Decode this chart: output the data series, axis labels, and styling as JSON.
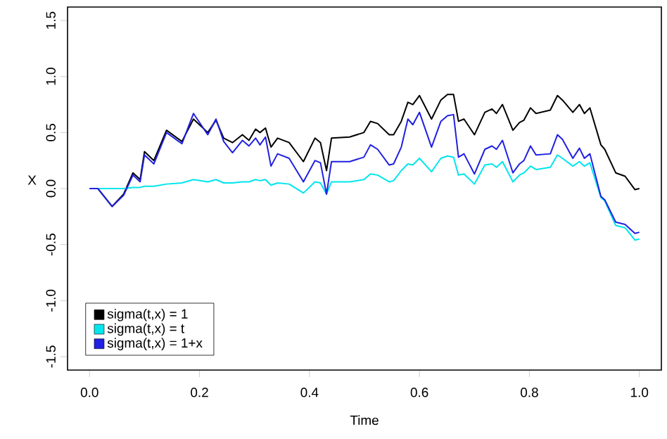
{
  "chart_data": {
    "type": "line",
    "xlabel": "Time",
    "ylabel": "X",
    "x": [
      0,
      0.015,
      0.041,
      0.062,
      0.079,
      0.092,
      0.1,
      0.117,
      0.14,
      0.168,
      0.189,
      0.215,
      0.23,
      0.244,
      0.26,
      0.278,
      0.29,
      0.302,
      0.31,
      0.32,
      0.33,
      0.342,
      0.363,
      0.389,
      0.41,
      0.42,
      0.431,
      0.44,
      0.473,
      0.499,
      0.511,
      0.524,
      0.545,
      0.553,
      0.567,
      0.579,
      0.588,
      0.6,
      0.622,
      0.639,
      0.651,
      0.662,
      0.671,
      0.681,
      0.7,
      0.719,
      0.732,
      0.74,
      0.751,
      0.77,
      0.782,
      0.79,
      0.802,
      0.812,
      0.838,
      0.851,
      0.86,
      0.879,
      0.891,
      0.9,
      0.91,
      0.93,
      0.937,
      0.957,
      0.974,
      0.992,
      1.0
    ],
    "series": [
      {
        "name": "sigma(t,x) = 1",
        "color": "#000000",
        "values": [
          0,
          0,
          -0.16,
          -0.05,
          0.14,
          0.08,
          0.33,
          0.25,
          0.52,
          0.42,
          0.62,
          0.5,
          0.61,
          0.45,
          0.41,
          0.48,
          0.43,
          0.53,
          0.5,
          0.54,
          0.37,
          0.45,
          0.41,
          0.24,
          0.45,
          0.41,
          0.16,
          0.45,
          0.46,
          0.5,
          0.6,
          0.58,
          0.48,
          0.48,
          0.6,
          0.77,
          0.75,
          0.83,
          0.62,
          0.79,
          0.84,
          0.84,
          0.6,
          0.62,
          0.48,
          0.68,
          0.71,
          0.67,
          0.75,
          0.52,
          0.59,
          0.61,
          0.72,
          0.67,
          0.7,
          0.83,
          0.79,
          0.68,
          0.75,
          0.67,
          0.72,
          0.39,
          0.35,
          0.14,
          0.11,
          -0.01,
          0.0
        ]
      },
      {
        "name": "sigma(t,x) = t",
        "color": "#00e5ee",
        "values": [
          0,
          0,
          0,
          0,
          0.01,
          0.01,
          0.02,
          0.02,
          0.04,
          0.05,
          0.08,
          0.06,
          0.08,
          0.05,
          0.05,
          0.06,
          0.06,
          0.08,
          0.07,
          0.08,
          0.03,
          0.05,
          0.04,
          -0.04,
          0.06,
          0.05,
          -0.05,
          0.06,
          0.06,
          0.08,
          0.13,
          0.12,
          0.06,
          0.07,
          0.16,
          0.22,
          0.21,
          0.27,
          0.15,
          0.27,
          0.29,
          0.28,
          0.12,
          0.13,
          0.04,
          0.21,
          0.22,
          0.19,
          0.24,
          0.06,
          0.12,
          0.14,
          0.2,
          0.17,
          0.19,
          0.3,
          0.27,
          0.2,
          0.24,
          0.2,
          0.23,
          -0.08,
          -0.11,
          -0.33,
          -0.35,
          -0.46,
          -0.45
        ]
      },
      {
        "name": "sigma(t,x) = 1+x",
        "color": "#2020e0",
        "values": [
          0,
          0,
          -0.16,
          -0.06,
          0.12,
          0.06,
          0.3,
          0.22,
          0.5,
          0.4,
          0.67,
          0.48,
          0.62,
          0.42,
          0.32,
          0.43,
          0.38,
          0.45,
          0.39,
          0.46,
          0.2,
          0.31,
          0.27,
          0.06,
          0.25,
          0.23,
          -0.05,
          0.24,
          0.24,
          0.28,
          0.39,
          0.35,
          0.21,
          0.22,
          0.37,
          0.62,
          0.57,
          0.68,
          0.37,
          0.6,
          0.65,
          0.66,
          0.28,
          0.31,
          0.13,
          0.35,
          0.38,
          0.35,
          0.43,
          0.14,
          0.22,
          0.25,
          0.38,
          0.3,
          0.31,
          0.48,
          0.44,
          0.27,
          0.36,
          0.27,
          0.31,
          -0.07,
          -0.1,
          -0.3,
          -0.32,
          -0.4,
          -0.39
        ]
      }
    ],
    "xlim": [
      -0.04,
      1.04
    ],
    "ylim": [
      -1.62,
      1.62
    ],
    "xticks": [
      {
        "value": 0,
        "label": "0.0"
      },
      {
        "value": 0.2,
        "label": "0.2"
      },
      {
        "value": 0.4,
        "label": "0.4"
      },
      {
        "value": 0.6,
        "label": "0.6"
      },
      {
        "value": 0.8,
        "label": "0.8"
      },
      {
        "value": 1,
        "label": "1.0"
      }
    ],
    "yticks": [
      {
        "value": -1.5,
        "label": "-1.5"
      },
      {
        "value": -1,
        "label": "-1.0"
      },
      {
        "value": -0.5,
        "label": "-0.5"
      },
      {
        "value": 0,
        "label": "0.0"
      },
      {
        "value": 0.5,
        "label": "0.5"
      },
      {
        "value": 1,
        "label": "1.0"
      },
      {
        "value": 1.5,
        "label": "1.5"
      }
    ],
    "grid": false,
    "legend": "bottom left",
    "line_style": "solid"
  }
}
